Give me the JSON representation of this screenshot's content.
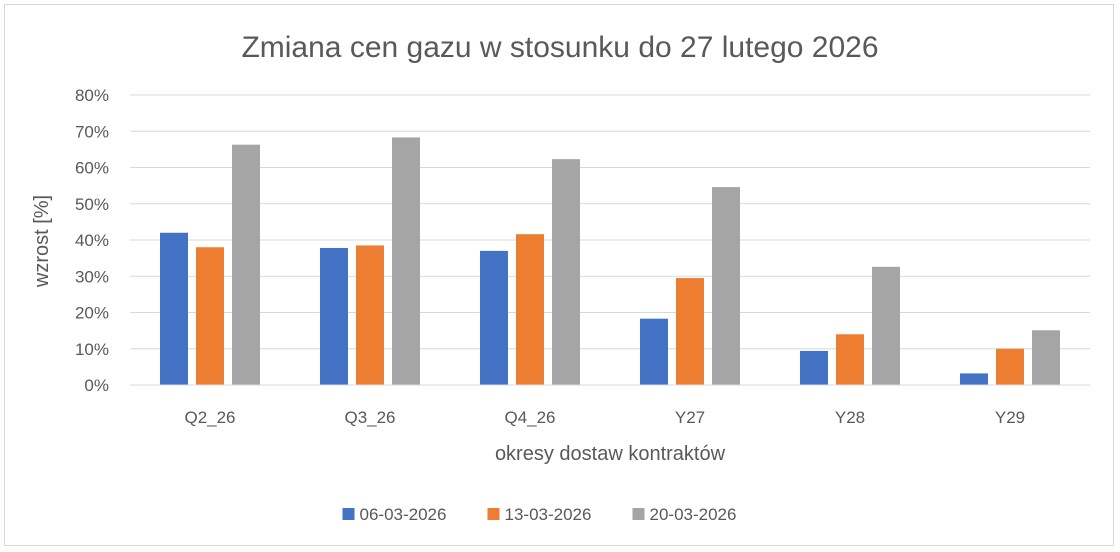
{
  "chart_data": {
    "type": "bar",
    "title": "Zmiana cen gazu w stosunku do 27 lutego 2026",
    "xlabel": "okresy dostaw kontraktów",
    "ylabel": "wzrost [%]",
    "categories": [
      "Q2_26",
      "Q3_26",
      "Q4_26",
      "Y27",
      "Y28",
      "Y29"
    ],
    "series": [
      {
        "name": "06-03-2026",
        "color": "#4472c4",
        "values": [
          42.0,
          37.8,
          37.0,
          18.3,
          9.4,
          3.2
        ]
      },
      {
        "name": "13-03-2026",
        "color": "#ed7d31",
        "values": [
          38.0,
          38.5,
          41.6,
          29.5,
          14.0,
          10.0
        ]
      },
      {
        "name": "20-03-2026",
        "color": "#a5a5a5",
        "values": [
          66.3,
          68.3,
          62.3,
          54.6,
          32.6,
          15.1
        ]
      }
    ],
    "y_ticks": [
      "0%",
      "10%",
      "20%",
      "30%",
      "40%",
      "50%",
      "60%",
      "70%",
      "80%"
    ],
    "ylim": [
      0,
      80
    ],
    "grid": true,
    "legend_position": "bottom"
  }
}
